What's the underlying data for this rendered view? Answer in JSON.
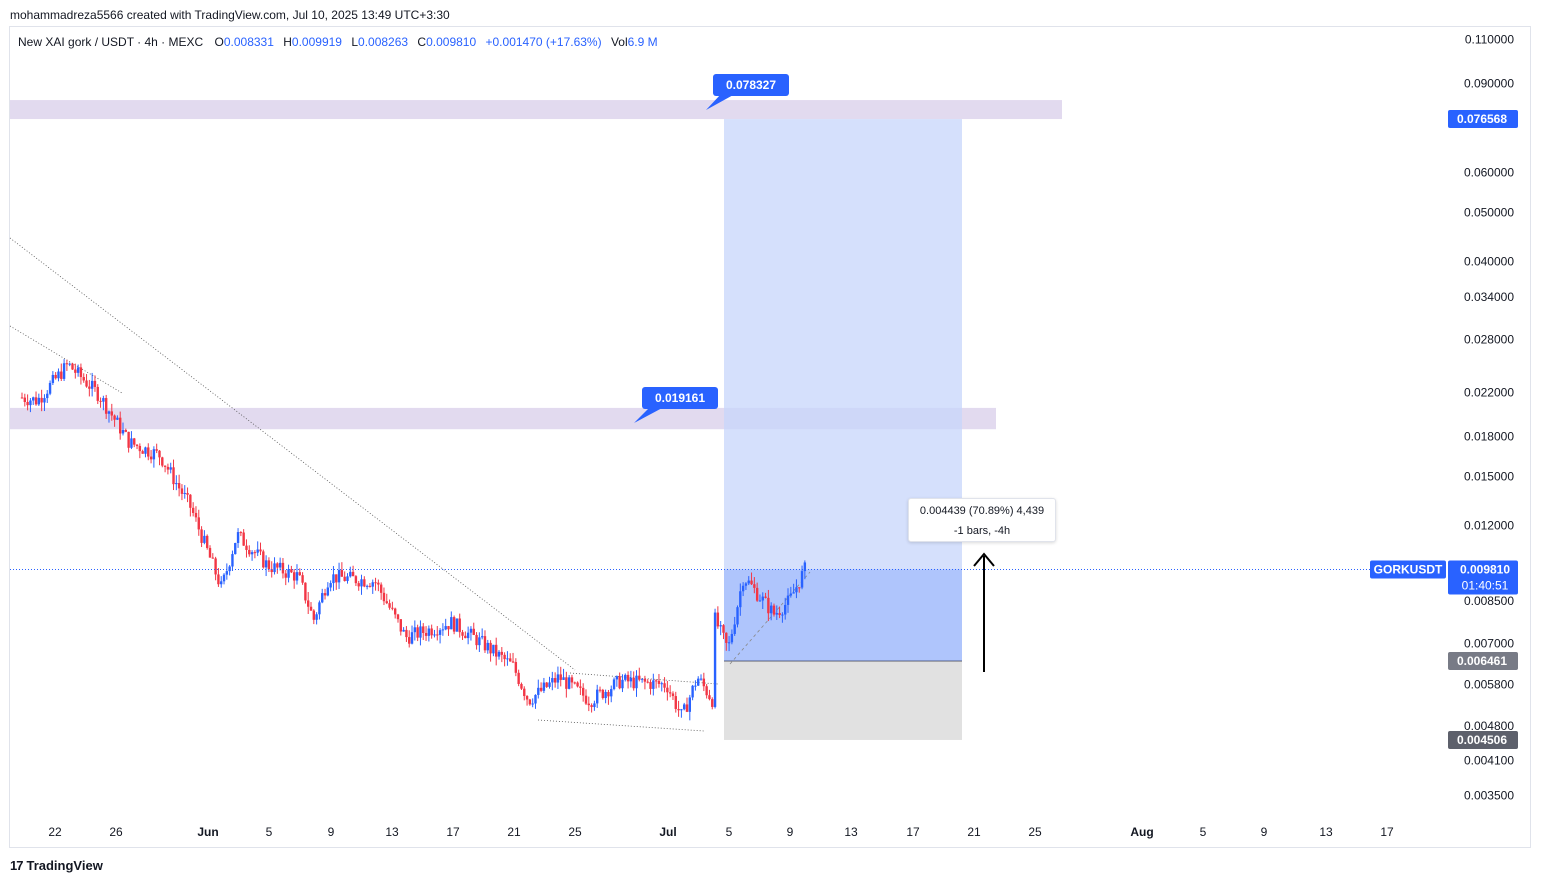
{
  "credit": "mohammadreza5566 created with TradingView.com, Jul 10, 2025 13:49 UTC+3:30",
  "legend": {
    "symbol": "New XAI gork / USDT · 4h · MEXC",
    "o_label": "O",
    "o": "0.008331",
    "h_label": "H",
    "h": "0.009919",
    "l_label": "L",
    "l": "0.008263",
    "c_label": "C",
    "c": "0.009810",
    "change": "+0.001470 (+17.63%)",
    "vol_label": "Vol",
    "vol": "6.9 M"
  },
  "footer": {
    "logo": "17",
    "brand": "TradingView"
  },
  "measure": {
    "line1": "0.004439 (70.89%) 4,439",
    "line2": "-1 bars, -4h"
  },
  "callouts": {
    "upper": "0.078327",
    "lower": "0.019161"
  },
  "price_tags": {
    "ticker": "GORKUSDT",
    "last": "0.009810",
    "countdown": "01:40:51",
    "target": "0.076568",
    "entry": "0.006461",
    "stop": "0.004506"
  },
  "colors": {
    "up": "#2962ff",
    "down": "#f23645",
    "accent": "#2962ff",
    "zone": "#d8cdea",
    "profit": "#c7d6fb",
    "loss": "#dcdcdc"
  },
  "chart_data": {
    "type": "candlestick",
    "symbol": "New XAI gork / USDT",
    "interval": "4h",
    "exchange": "MEXC",
    "y_scale": "log",
    "ylim": [
      0.0032,
      0.116
    ],
    "y_ticks": [
      "0.110000",
      "0.090000",
      "0.060000",
      "0.050000",
      "0.040000",
      "0.034000",
      "0.028000",
      "0.022000",
      "0.018000",
      "0.015000",
      "0.012000",
      "0.008500",
      "0.007000",
      "0.005800",
      "0.004800",
      "0.004100",
      "0.003500"
    ],
    "x_ticks": [
      "22",
      "26",
      "Jun",
      "5",
      "9",
      "13",
      "17",
      "21",
      "25",
      "Jul",
      "5",
      "9",
      "13",
      "17",
      "21",
      "25",
      "Aug",
      "5",
      "9",
      "13",
      "17"
    ],
    "last_price": 0.00981,
    "resistance_zones": [
      {
        "low": 0.076568,
        "high": 0.0835
      },
      {
        "low": 0.0186,
        "high": 0.0205
      }
    ],
    "long_position": {
      "entry": 0.006461,
      "target": 0.076568,
      "stop": 0.004506
    },
    "price_path": [
      [
        0.0215,
        "May 20"
      ],
      [
        0.0212,
        "May 21"
      ],
      [
        0.025,
        "May 23"
      ],
      [
        0.0218,
        "May 25"
      ],
      [
        0.0175,
        "May 27"
      ],
      [
        0.0165,
        "May 29"
      ],
      [
        0.013,
        "May 31"
      ],
      [
        0.009,
        "Jun 2"
      ],
      [
        0.0115,
        "Jun 3"
      ],
      [
        0.01,
        "Jun 5"
      ],
      [
        0.0095,
        "Jun 7"
      ],
      [
        0.0078,
        "Jun 8"
      ],
      [
        0.0095,
        "Jun 9"
      ],
      [
        0.0093,
        "Jun 12"
      ],
      [
        0.0072,
        "Jun 14"
      ],
      [
        0.0077,
        "Jun 17"
      ],
      [
        0.007,
        "Jun 19"
      ],
      [
        0.0063,
        "Jun 21"
      ],
      [
        0.0054,
        "Jun 22"
      ],
      [
        0.006,
        "Jun 24"
      ],
      [
        0.0054,
        "Jun 26"
      ],
      [
        0.0059,
        "Jun 28"
      ],
      [
        0.0058,
        "Jul 1"
      ],
      [
        0.005,
        "Jul 2"
      ],
      [
        0.006,
        "Jul 3"
      ],
      [
        0.0054,
        "Jul 4"
      ],
      [
        0.008,
        "Jul 4"
      ],
      [
        0.0068,
        "Jul 5"
      ],
      [
        0.0095,
        "Jul 6"
      ],
      [
        0.008,
        "Jul 8"
      ],
      [
        0.0085,
        "Jul 9"
      ],
      [
        0.00981,
        "Jul 10"
      ]
    ]
  }
}
